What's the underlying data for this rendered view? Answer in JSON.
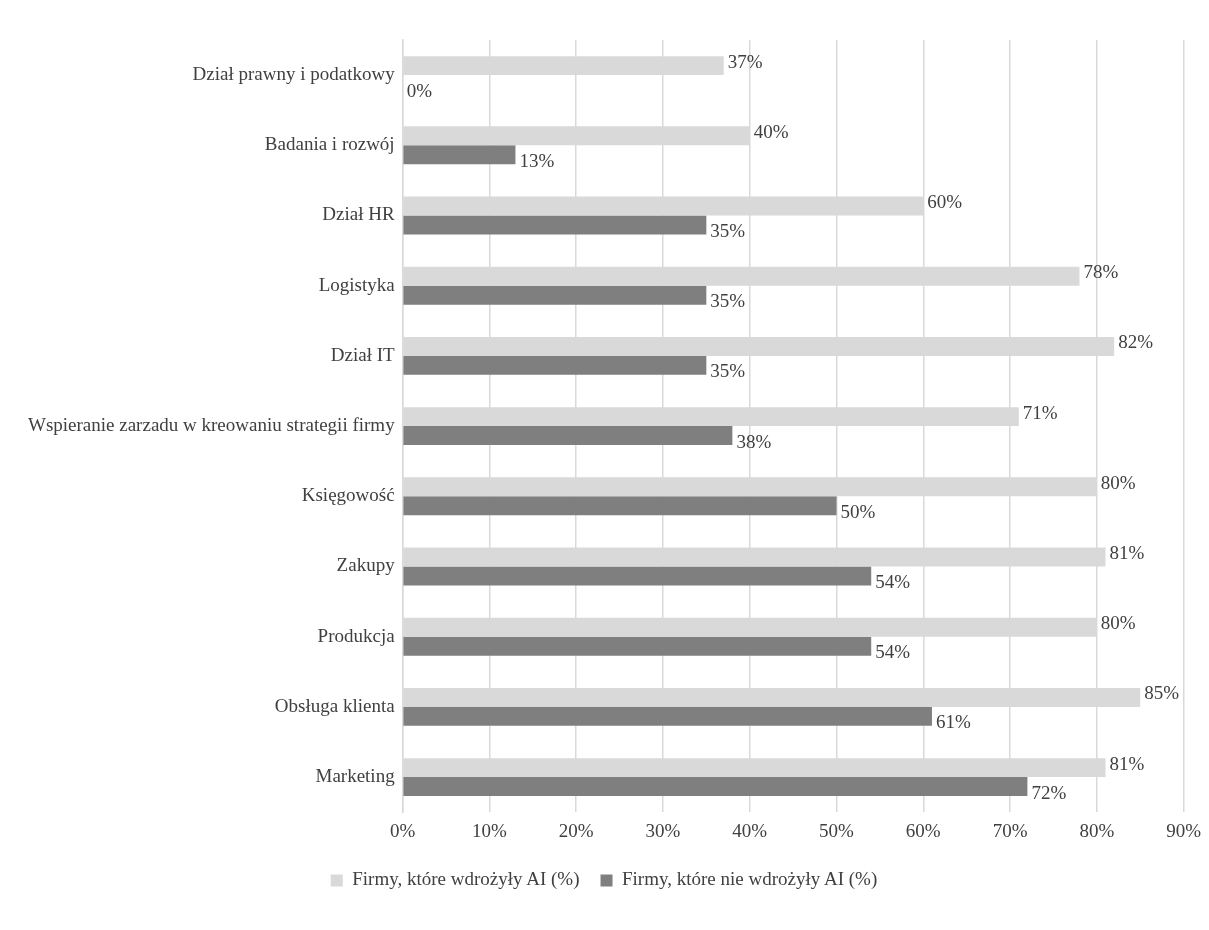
{
  "chart_data": {
    "type": "bar",
    "orientation": "horizontal",
    "categories": [
      "Dział prawny i podatkowy",
      "Badania i rozwój",
      "Dział HR",
      "Logistyka",
      "Dział IT",
      "Wspieranie zarzadu w kreowaniu strategii firmy",
      "Księgowość",
      "Zakupy",
      "Produkcja",
      "Obsługa klienta",
      "Marketing"
    ],
    "series": [
      {
        "name": "Firmy, które wdrożyły AI (%)",
        "color": "#d9d9d9",
        "values": [
          37,
          40,
          60,
          78,
          82,
          71,
          80,
          81,
          80,
          85,
          81
        ],
        "value_labels": [
          "37%",
          "40%",
          "60%",
          "78%",
          "82%",
          "71%",
          "80%",
          "81%",
          "80%",
          "85%",
          "81%"
        ]
      },
      {
        "name": "Firmy, które nie wdrożyły AI (%)",
        "color": "#7f7f7f",
        "values": [
          0,
          13,
          35,
          35,
          35,
          38,
          50,
          54,
          54,
          61,
          72
        ],
        "value_labels": [
          "0%",
          "13%",
          "35%",
          "35%",
          "35%",
          "38%",
          "50%",
          "54%",
          "54%",
          "61%",
          "72%"
        ]
      }
    ],
    "xlim": [
      0,
      90
    ],
    "xticks": [
      {
        "value": 0,
        "label": "0%"
      },
      {
        "value": 10,
        "label": "10%"
      },
      {
        "value": 20,
        "label": "20%"
      },
      {
        "value": 30,
        "label": "30%"
      },
      {
        "value": 40,
        "label": "40%"
      },
      {
        "value": 50,
        "label": "50%"
      },
      {
        "value": 60,
        "label": "60%"
      },
      {
        "value": 70,
        "label": "70%"
      },
      {
        "value": 80,
        "label": "80%"
      },
      {
        "value": 90,
        "label": "90%"
      }
    ],
    "grid": "x",
    "legend": "bottom"
  }
}
